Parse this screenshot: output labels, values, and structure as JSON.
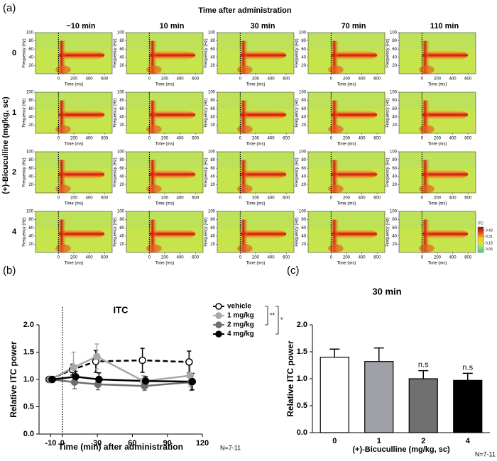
{
  "chart_data": [
    {
      "type": "heatmap-grid",
      "panel_label": "(a)",
      "title": "Time after administration",
      "columns": [
        "−10 min",
        "10 min",
        "30 min",
        "70 min",
        "110 min"
      ],
      "rows": [
        "0",
        "1",
        "2",
        "4"
      ],
      "row_axis_label": "(+)-Bicuculline (mg/kg, sc)",
      "xlabel": "Time (ms)",
      "ylabel": "Frequency (Hz)",
      "xlim": [
        -300,
        700
      ],
      "xticks": [
        0,
        200,
        400,
        600
      ],
      "ylim": [
        0,
        100
      ],
      "yticks": [
        20,
        40,
        60,
        80,
        100
      ],
      "colorbar": {
        "label": "ITC",
        "lim": [
          0,
          0.5
        ],
        "ticks": [
          0.43,
          0.31,
          0.18,
          0.06
        ]
      }
    },
    {
      "type": "line",
      "panel_label": "(b)",
      "title": "ITC",
      "xlabel": "Time (min) after administration",
      "ylabel": "Relative ITC power",
      "x": [
        -10,
        10,
        30,
        70,
        110
      ],
      "xlim": [
        -20,
        120
      ],
      "xticks": [
        -10,
        0,
        30,
        60,
        90,
        120
      ],
      "ylim": [
        0,
        2
      ],
      "yticks": [
        {
          "value": 0,
          "label": "0.0"
        },
        {
          "value": 0.5,
          "label": "0.5"
        },
        {
          "value": 1,
          "label": "1.0"
        },
        {
          "value": 1.5,
          "label": "1.5"
        },
        {
          "value": 2,
          "label": "2.0"
        }
      ],
      "series": [
        {
          "name": "vehicle",
          "color": "#000000",
          "marker": "open",
          "dash": true,
          "values": [
            1.0,
            1.18,
            1.33,
            1.35,
            1.32
          ],
          "errors": [
            0,
            0.1,
            0.2,
            0.22,
            0.2
          ]
        },
        {
          "name": "1 mg/kg",
          "color": "#a8a8a8",
          "marker": "filled",
          "dash": false,
          "values": [
            1.0,
            1.22,
            1.42,
            0.97,
            1.07
          ],
          "errors": [
            0,
            0.28,
            0.23,
            0.1,
            0.2
          ]
        },
        {
          "name": "2 mg/kg",
          "color": "#6e6e6e",
          "marker": "filled",
          "dash": false,
          "values": [
            1.0,
            0.95,
            0.91,
            0.88,
            0.95
          ],
          "errors": [
            0,
            0.12,
            0.1,
            0.08,
            0.15
          ]
        },
        {
          "name": "4 mg/kg",
          "color": "#000000",
          "marker": "filled",
          "dash": false,
          "values": [
            1.0,
            1.05,
            1.0,
            0.97,
            0.96
          ],
          "errors": [
            0,
            0.1,
            0.12,
            0.08,
            0.15
          ]
        }
      ],
      "significance": [
        "**",
        "*"
      ],
      "note": "N=7-11"
    },
    {
      "type": "bar",
      "panel_label": "(c)",
      "title": "30 min",
      "xlabel": "(+)-Bicuculline (mg/kg, sc)",
      "ylabel": "Relative ITC power",
      "categories": [
        "0",
        "1",
        "2",
        "4"
      ],
      "values": [
        1.4,
        1.32,
        1.0,
        0.97
      ],
      "errors": [
        0.15,
        0.25,
        0.15,
        0.13
      ],
      "colors": [
        "#ffffff",
        "#a0a0a8",
        "#707070",
        "#000000"
      ],
      "annotations": [
        null,
        null,
        "n.s",
        "n.s"
      ],
      "ylim": [
        0,
        2
      ],
      "yticks": [
        {
          "value": 0,
          "label": "0.0"
        },
        {
          "value": 0.5,
          "label": "0.5"
        },
        {
          "value": 1,
          "label": "1.0"
        },
        {
          "value": 1.5,
          "label": "1.5"
        },
        {
          "value": 2,
          "label": "2.0"
        }
      ],
      "note": "N=7-11"
    }
  ]
}
